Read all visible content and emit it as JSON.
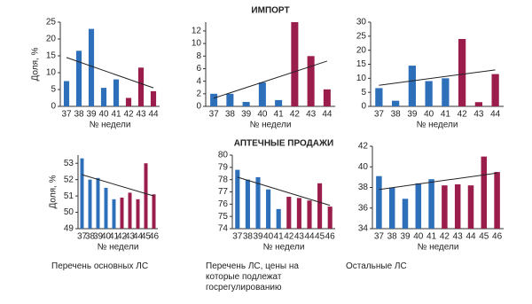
{
  "chart_data": [
    {
      "type": "bar",
      "y_label": "Доля, %",
      "x_label": "№ недели",
      "categories": [
        "37",
        "38",
        "39",
        "40",
        "41",
        "42",
        "43",
        "44"
      ],
      "values": [
        7.5,
        16.5,
        23,
        5.5,
        8,
        2.5,
        11.5,
        4.5
      ],
      "colors": [
        "#2e6fba",
        "#2e6fba",
        "#2e6fba",
        "#2e6fba",
        "#2e6fba",
        "#9b1d4c",
        "#9b1d4c",
        "#9b1d4c"
      ],
      "trend": [
        14.5,
        5.5
      ],
      "ylim": [
        0,
        25
      ],
      "yticks": [
        0,
        5,
        10,
        15,
        20,
        25
      ]
    },
    {
      "type": "bar",
      "title": "ИМПОРТ",
      "x_label": "№ недели",
      "categories": [
        "37",
        "38",
        "39",
        "40",
        "41",
        "42",
        "43",
        "44"
      ],
      "values": [
        2,
        2,
        0.7,
        3.8,
        1,
        13.4,
        8,
        2.7
      ],
      "colors": [
        "#2e6fba",
        "#2e6fba",
        "#2e6fba",
        "#2e6fba",
        "#2e6fba",
        "#9b1d4c",
        "#9b1d4c",
        "#9b1d4c"
      ],
      "trend": [
        1.3,
        7.2
      ],
      "ylim": [
        0,
        13.4
      ],
      "yticks": [
        0,
        2,
        4,
        6,
        8,
        10,
        12
      ]
    },
    {
      "type": "bar",
      "x_label": "№ недели",
      "categories": [
        "37",
        "38",
        "39",
        "40",
        "41",
        "42",
        "43",
        "44"
      ],
      "values": [
        6.5,
        2,
        14.5,
        9,
        10,
        24,
        1.5,
        11.5
      ],
      "colors": [
        "#2e6fba",
        "#2e6fba",
        "#2e6fba",
        "#2e6fba",
        "#2e6fba",
        "#9b1d4c",
        "#9b1d4c",
        "#9b1d4c"
      ],
      "trend": [
        7.5,
        13
      ],
      "ylim": [
        0,
        30
      ],
      "yticks": [
        0,
        5,
        10,
        15,
        20,
        25,
        30
      ]
    },
    {
      "type": "bar",
      "y_label": "Доля, %",
      "x_label": "№ недели",
      "caption": "Перечень основных ЛС",
      "categories": [
        "37",
        "38",
        "39",
        "40",
        "41",
        "42",
        "43",
        "44",
        "45",
        "46"
      ],
      "values": [
        53.3,
        52,
        52.1,
        51.5,
        50.8,
        50.9,
        51.2,
        50.8,
        53,
        51.1
      ],
      "colors": [
        "#2e6fba",
        "#2e6fba",
        "#2e6fba",
        "#2e6fba",
        "#2e6fba",
        "#9b1d4c",
        "#9b1d4c",
        "#9b1d4c",
        "#9b1d4c",
        "#9b1d4c"
      ],
      "trend": [
        52.3,
        51
      ],
      "ylim": [
        49,
        53.5
      ],
      "yticks": [
        49,
        50,
        51,
        52,
        53
      ]
    },
    {
      "type": "bar",
      "title": "АПТЕЧНЫЕ ПРОДАЖИ",
      "x_label": "№ недели",
      "caption": "Перечень ЛС, цены на которые подлежат госрегулированию",
      "categories": [
        "37",
        "38",
        "39",
        "40",
        "41",
        "42",
        "43",
        "44",
        "45",
        "46"
      ],
      "values": [
        78.8,
        78,
        78.2,
        77.2,
        75.6,
        76.6,
        76.5,
        76.3,
        77.7,
        75.8
      ],
      "colors": [
        "#2e6fba",
        "#2e6fba",
        "#2e6fba",
        "#2e6fba",
        "#2e6fba",
        "#9b1d4c",
        "#9b1d4c",
        "#9b1d4c",
        "#9b1d4c",
        "#9b1d4c"
      ],
      "trend": [
        78.2,
        75.9
      ],
      "ylim": [
        74,
        80
      ],
      "yticks": [
        74,
        75,
        76,
        77,
        78,
        79,
        80
      ]
    },
    {
      "type": "bar",
      "x_label": "№ недели",
      "caption": "Остальные ЛС",
      "categories": [
        "37",
        "38",
        "39",
        "40",
        "41",
        "42",
        "43",
        "44",
        "45",
        "46"
      ],
      "values": [
        39.1,
        38,
        36.9,
        38.4,
        38.8,
        38.2,
        38.3,
        38.2,
        41,
        39.5
      ],
      "colors": [
        "#2e6fba",
        "#2e6fba",
        "#2e6fba",
        "#2e6fba",
        "#2e6fba",
        "#9b1d4c",
        "#9b1d4c",
        "#9b1d4c",
        "#9b1d4c",
        "#9b1d4c"
      ],
      "trend": [
        37.8,
        39.4
      ],
      "ylim": [
        34,
        42
      ],
      "yticks": [
        34,
        36,
        38,
        40,
        42
      ]
    }
  ]
}
